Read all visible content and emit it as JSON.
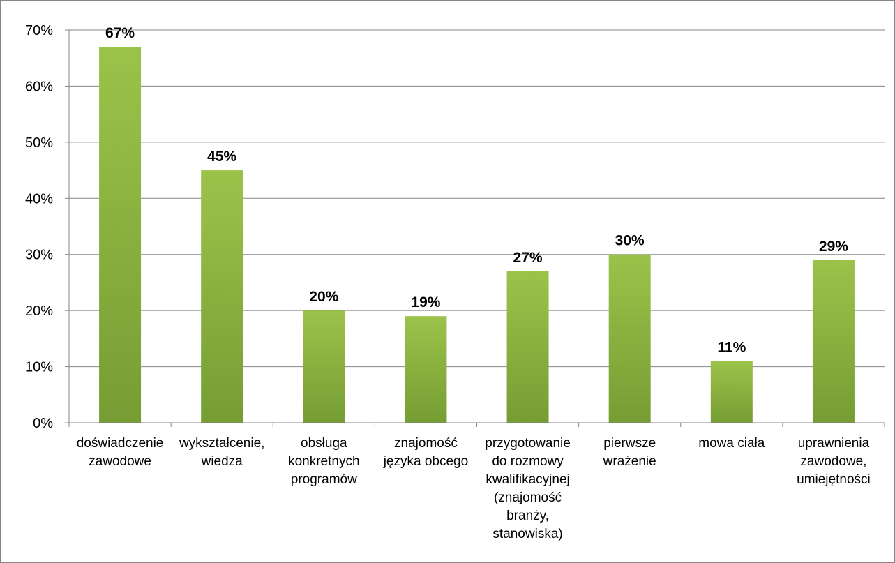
{
  "chart_data": {
    "type": "bar",
    "categories": [
      [
        "doświadczenie",
        "zawodowe"
      ],
      [
        "wykształcenie,",
        "wiedza"
      ],
      [
        "obsługa",
        "konkretnych",
        "programów"
      ],
      [
        "znajomość",
        "języka obcego"
      ],
      [
        "przygotowanie",
        "do rozmowy",
        "kwalifikacyjnej",
        "(znajomość",
        "branży,",
        "stanowiska)"
      ],
      [
        "pierwsze",
        "wrażenie"
      ],
      [
        "mowa ciała"
      ],
      [
        "uprawnienia",
        "zawodowe,",
        "umiejętności"
      ]
    ],
    "values": [
      67,
      45,
      20,
      19,
      27,
      30,
      11,
      29
    ],
    "data_labels": [
      "67%",
      "45%",
      "20%",
      "19%",
      "27%",
      "30%",
      "11%",
      "29%"
    ],
    "y_ticks": [
      "0%",
      "10%",
      "20%",
      "30%",
      "40%",
      "50%",
      "60%",
      "70%"
    ],
    "ylim": [
      0,
      70
    ],
    "grid": true,
    "legend": "none",
    "colors": {
      "bar_top": "#9bc34a",
      "bar_bottom": "#769d33",
      "grid": "#868686",
      "axis": "#868686"
    }
  }
}
